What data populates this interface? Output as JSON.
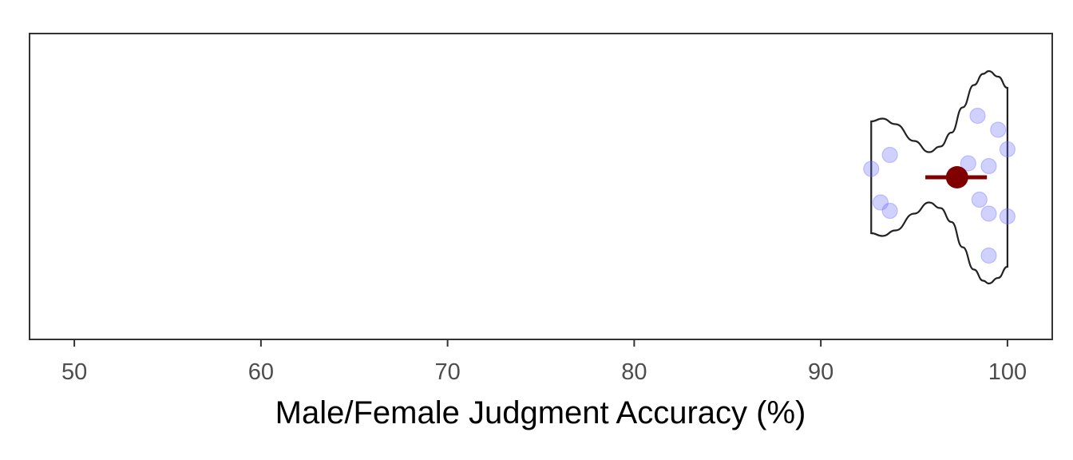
{
  "chart_data": {
    "type": "violin",
    "xlabel": "Male/Female Judgment Accuracy (%)",
    "ylabel": "",
    "xlim": [
      47.6,
      102.4
    ],
    "x_ticks": [
      50,
      60,
      70,
      80,
      90,
      100
    ],
    "grid": false,
    "legend": "none",
    "points": [
      {
        "x": 92.7,
        "y": 0.03
      },
      {
        "x": 93.2,
        "y": -0.09
      },
      {
        "x": 93.7,
        "y": 0.08
      },
      {
        "x": 93.7,
        "y": -0.12
      },
      {
        "x": 97.9,
        "y": 0.05
      },
      {
        "x": 98.4,
        "y": 0.22
      },
      {
        "x": 98.5,
        "y": -0.08
      },
      {
        "x": 99.0,
        "y": 0.04
      },
      {
        "x": 99.0,
        "y": -0.13
      },
      {
        "x": 99.0,
        "y": -0.28
      },
      {
        "x": 99.5,
        "y": 0.17
      },
      {
        "x": 100.0,
        "y": 0.1
      },
      {
        "x": 100.0,
        "y": -0.14
      }
    ],
    "mean": 97.3,
    "error_bar": [
      95.6,
      98.9
    ],
    "violin": {
      "min": 92.7,
      "max": 100.0,
      "density_x": [
        92.7,
        93.3,
        94.0,
        95.0,
        95.8,
        96.4,
        97.0,
        97.6,
        98.2,
        98.7,
        99.0,
        99.5,
        100.0
      ],
      "density_half_width": [
        0.2,
        0.21,
        0.19,
        0.13,
        0.09,
        0.11,
        0.16,
        0.25,
        0.33,
        0.37,
        0.38,
        0.36,
        0.32
      ]
    },
    "colors": {
      "points": "#6666ff",
      "mean": "#800000",
      "violin_outline": "#222222",
      "panel_border": "#333333"
    }
  }
}
